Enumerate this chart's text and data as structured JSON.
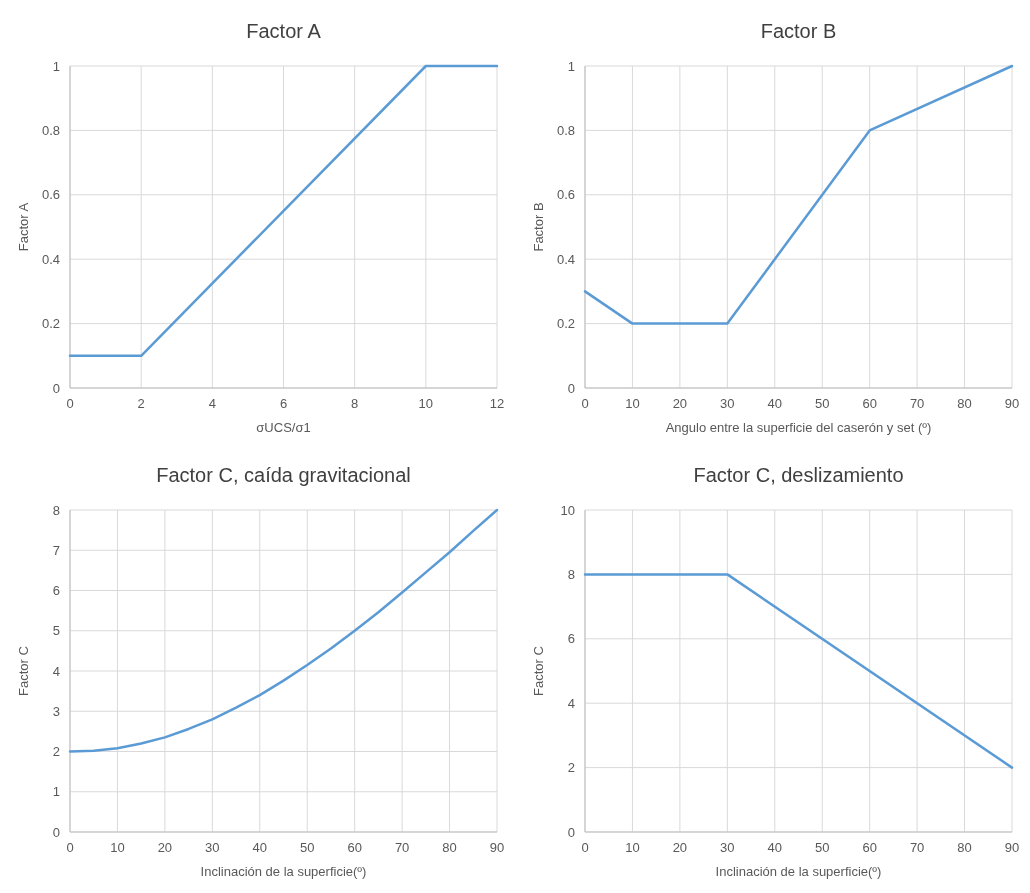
{
  "chart_data": [
    {
      "type": "line",
      "title": "Factor A",
      "xlabel": "σUCS/σ1",
      "ylabel": "Factor A",
      "x": [
        0,
        2,
        10,
        12
      ],
      "series": [
        {
          "color": "#5b9bd5",
          "values": [
            0.1,
            0.1,
            1,
            1
          ]
        }
      ],
      "xlim": [
        0,
        12
      ],
      "xticks": [
        0,
        2,
        4,
        6,
        8,
        10,
        12
      ],
      "ylim": [
        0,
        1
      ],
      "yticks": [
        0,
        0.2,
        0.4,
        0.6,
        0.8,
        1
      ],
      "grid": true
    },
    {
      "type": "line",
      "title": "Factor B",
      "xlabel": "Angulo entre la superficie del caserón y set (º)",
      "ylabel": "Factor B",
      "x": [
        0,
        10,
        30,
        60,
        90
      ],
      "series": [
        {
          "color": "#5b9bd5",
          "values": [
            0.3,
            0.2,
            0.2,
            0.8,
            1
          ]
        }
      ],
      "xlim": [
        0,
        90
      ],
      "xticks": [
        0,
        10,
        20,
        30,
        40,
        50,
        60,
        70,
        80,
        90
      ],
      "ylim": [
        0,
        1
      ],
      "yticks": [
        0,
        0.2,
        0.4,
        0.6,
        0.8,
        1
      ],
      "grid": true
    },
    {
      "type": "line",
      "title": "Factor C, caída gravitacional",
      "xlabel": "Inclinación de la superficie(º)",
      "ylabel": "Factor C",
      "x": [
        0,
        5,
        10,
        15,
        20,
        25,
        30,
        35,
        40,
        45,
        50,
        55,
        60,
        65,
        70,
        75,
        80,
        85,
        90
      ],
      "series": [
        {
          "color": "#5b9bd5",
          "values": [
            2,
            2.02,
            2.08,
            2.2,
            2.35,
            2.56,
            2.8,
            3.09,
            3.4,
            3.76,
            4.15,
            4.56,
            5,
            5.46,
            5.95,
            6.45,
            6.95,
            7.48,
            8
          ]
        }
      ],
      "xlim": [
        0,
        90
      ],
      "xticks": [
        0,
        10,
        20,
        30,
        40,
        50,
        60,
        70,
        80,
        90
      ],
      "ylim": [
        0,
        8
      ],
      "yticks": [
        0,
        1,
        2,
        3,
        4,
        5,
        6,
        7,
        8
      ],
      "grid": true
    },
    {
      "type": "line",
      "title": "Factor C, deslizamiento",
      "xlabel": "Inclinación de la superficie(º)",
      "ylabel": "Factor C",
      "x": [
        0,
        30,
        90
      ],
      "series": [
        {
          "color": "#5b9bd5",
          "values": [
            8,
            8,
            2
          ]
        }
      ],
      "xlim": [
        0,
        90
      ],
      "xticks": [
        0,
        10,
        20,
        30,
        40,
        50,
        60,
        70,
        80,
        90
      ],
      "ylim": [
        0,
        10
      ],
      "yticks": [
        0,
        2,
        4,
        6,
        8,
        10
      ],
      "grid": true
    }
  ]
}
